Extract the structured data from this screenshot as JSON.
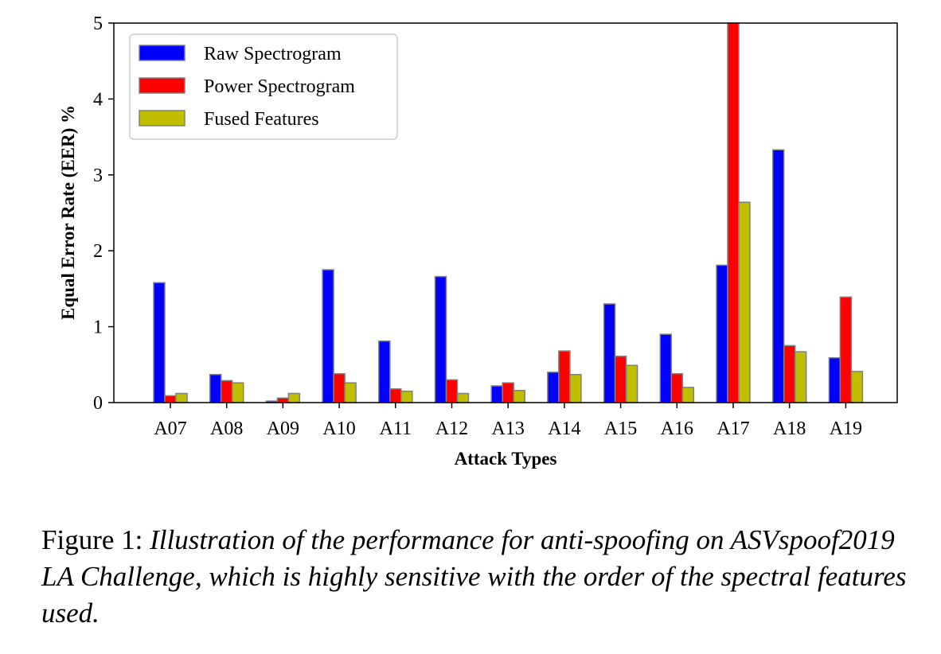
{
  "chart_data": {
    "type": "bar",
    "categories": [
      "A07",
      "A08",
      "A09",
      "A10",
      "A11",
      "A12",
      "A13",
      "A14",
      "A15",
      "A16",
      "A17",
      "A18",
      "A19"
    ],
    "series": [
      {
        "name": "Raw Spectrogram",
        "color": "#0000ff",
        "values": [
          1.58,
          0.37,
          0.02,
          1.75,
          0.81,
          1.66,
          0.22,
          0.4,
          1.3,
          0.9,
          1.81,
          3.33,
          0.59
        ]
      },
      {
        "name": "Power Spectrogram",
        "color": "#ff0000",
        "values": [
          0.09,
          0.29,
          0.06,
          0.38,
          0.18,
          0.3,
          0.26,
          0.68,
          0.61,
          0.38,
          5.0,
          0.75,
          1.39
        ]
      },
      {
        "name": "Fused Features",
        "color": "#bfbf00",
        "values": [
          0.12,
          0.26,
          0.12,
          0.26,
          0.15,
          0.12,
          0.16,
          0.37,
          0.49,
          0.2,
          2.64,
          0.67,
          0.41
        ]
      }
    ],
    "xlabel": "Attack Types",
    "ylabel": "Equal Error Rate (EER) %",
    "ylim": [
      0,
      5
    ],
    "yticks": [
      0,
      1,
      2,
      3,
      4,
      5
    ],
    "legend_position": "upper-left",
    "grid": false
  },
  "caption": {
    "label": "Figure 1:",
    "text": "Illustration of the performance for anti-spoofing on ASVspoof2019 LA Challenge, which is highly sensitive with the order of the spectral features used."
  }
}
